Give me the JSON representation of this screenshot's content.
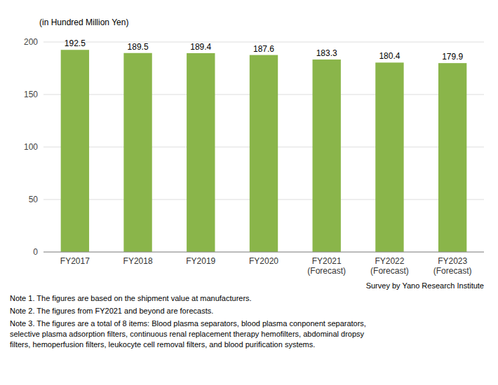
{
  "chart_data": {
    "type": "bar",
    "y_label": "(in Hundred Million Yen)",
    "categories": [
      "FY2017",
      "FY2018",
      "FY2019",
      "FY2020",
      "FY2021\n(Forecast)",
      "FY2022\n(Forecast)",
      "FY2023\n(Forecast)"
    ],
    "values": [
      192.5,
      189.5,
      189.4,
      187.6,
      183.3,
      180.4,
      179.9
    ],
    "color": "#8ab54a",
    "ylim": [
      0,
      200
    ],
    "yticks": [
      0,
      50,
      100,
      150,
      200
    ],
    "grid": true,
    "data_labels": true,
    "annotations": [
      "Survey by Yano Research Institute",
      "Note 1. The figures are based on the shipment value at manufacturers.",
      "Note 2. The figures from FY2021 and beyond are forecasts.",
      "Note 3. The figures are a total of 8 items: Blood plasma separators, blood plasma conponent separators,\nselective plasma adsorption filters, continuous renal replacement therapy hemofilters, abdominal dropsy\nfilters, hemoperfusion filters, leukocyte cell removal filters, and blood purification systems."
    ]
  }
}
